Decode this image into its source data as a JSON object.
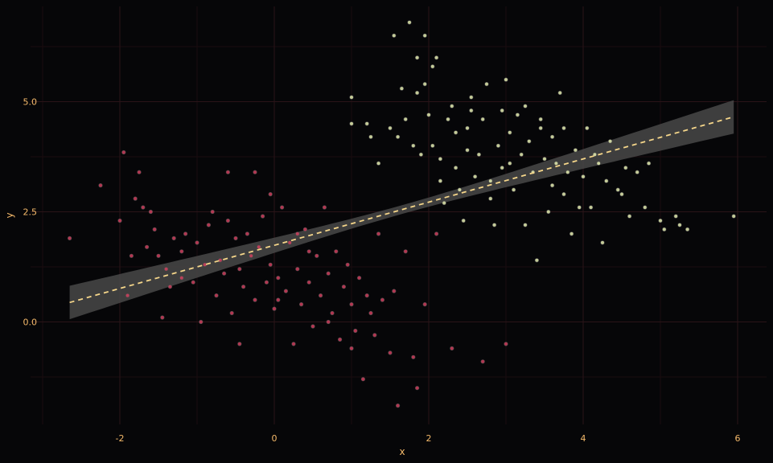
{
  "colors": {
    "background": "#060608",
    "grid_major": "#2a1418",
    "grid_minor": "#1a0c0f",
    "axis_text": "#f4b96a",
    "group_a": "#d2415f",
    "group_b": "#e6efb1",
    "point_outline": "#4a4a4a",
    "ribbon": "#4a4a4a",
    "fit_line": "#f5d68a"
  },
  "chart_data": {
    "type": "scatter",
    "xlabel": "x",
    "ylabel": "y",
    "xlim": [
      -3.0,
      6.2
    ],
    "ylim": [
      -2.3,
      7.0
    ],
    "x_ticks": [
      -2,
      0,
      2,
      4,
      6
    ],
    "x_tick_labels": [
      "-2",
      "0",
      "2",
      "4",
      "6"
    ],
    "y_ticks": [
      0.0,
      2.5,
      5.0
    ],
    "y_tick_labels": [
      "0.0",
      "2.5",
      "5.0"
    ],
    "grid": true,
    "legend": "none",
    "fit": {
      "type": "linear",
      "x_range": [
        -2.65,
        5.95
      ],
      "intercept": 1.74,
      "slope": 0.49,
      "band_halfwidth_min": 0.1,
      "band_halfwidth_at_ends": 0.38,
      "style": "dashed"
    },
    "series": [
      {
        "color_key": "group_a",
        "points": [
          [
            -2.65,
            1.9
          ],
          [
            -2.25,
            3.1
          ],
          [
            -2.0,
            2.3
          ],
          [
            -1.95,
            3.85
          ],
          [
            -1.9,
            0.6
          ],
          [
            -1.85,
            1.5
          ],
          [
            -1.8,
            2.8
          ],
          [
            -1.75,
            3.4
          ],
          [
            -1.7,
            2.6
          ],
          [
            -1.65,
            1.7
          ],
          [
            -1.6,
            2.5
          ],
          [
            -1.55,
            2.1
          ],
          [
            -1.5,
            1.5
          ],
          [
            -1.45,
            0.1
          ],
          [
            -1.4,
            1.2
          ],
          [
            -1.35,
            0.8
          ],
          [
            -1.3,
            1.9
          ],
          [
            -1.2,
            1.6
          ],
          [
            -1.15,
            2.0
          ],
          [
            -1.05,
            0.9
          ],
          [
            -1.0,
            1.8
          ],
          [
            -0.95,
            0.0
          ],
          [
            -0.9,
            1.3
          ],
          [
            -0.85,
            2.2
          ],
          [
            -0.8,
            2.5
          ],
          [
            -0.75,
            0.6
          ],
          [
            -0.7,
            1.4
          ],
          [
            -0.65,
            1.1
          ],
          [
            -0.6,
            2.3
          ],
          [
            -0.55,
            0.2
          ],
          [
            -0.5,
            1.9
          ],
          [
            -0.45,
            1.2
          ],
          [
            -0.4,
            0.8
          ],
          [
            -0.35,
            2.0
          ],
          [
            -0.3,
            1.5
          ],
          [
            -0.25,
            0.5
          ],
          [
            -0.2,
            1.7
          ],
          [
            -0.15,
            2.4
          ],
          [
            -0.1,
            0.9
          ],
          [
            -0.05,
            1.3
          ],
          [
            0.0,
            0.3
          ],
          [
            0.05,
            1.0
          ],
          [
            0.1,
            2.6
          ],
          [
            0.15,
            0.7
          ],
          [
            0.2,
            1.8
          ],
          [
            0.25,
            -0.5
          ],
          [
            0.3,
            1.2
          ],
          [
            0.35,
            0.4
          ],
          [
            0.4,
            2.1
          ],
          [
            0.45,
            0.9
          ],
          [
            0.5,
            -0.1
          ],
          [
            0.55,
            1.5
          ],
          [
            0.6,
            0.6
          ],
          [
            0.65,
            2.6
          ],
          [
            0.7,
            1.1
          ],
          [
            0.75,
            0.2
          ],
          [
            0.8,
            1.6
          ],
          [
            0.85,
            -0.4
          ],
          [
            0.9,
            0.8
          ],
          [
            0.95,
            1.3
          ],
          [
            1.0,
            0.4
          ],
          [
            1.05,
            -0.2
          ],
          [
            1.1,
            1.0
          ],
          [
            1.15,
            -1.3
          ],
          [
            1.2,
            0.6
          ],
          [
            1.3,
            -0.3
          ],
          [
            1.35,
            2.0
          ],
          [
            1.4,
            0.5
          ],
          [
            1.5,
            -0.7
          ],
          [
            1.55,
            0.7
          ],
          [
            1.6,
            -1.9
          ],
          [
            1.7,
            1.6
          ],
          [
            1.8,
            -0.8
          ],
          [
            1.85,
            -1.5
          ],
          [
            1.95,
            0.4
          ],
          [
            2.1,
            2.0
          ],
          [
            2.3,
            -0.6
          ],
          [
            2.7,
            -0.9
          ],
          [
            3.0,
            -0.5
          ],
          [
            -0.6,
            3.4
          ],
          [
            -0.25,
            3.4
          ],
          [
            -1.2,
            1.0
          ],
          [
            0.3,
            2.0
          ],
          [
            0.7,
            0.0
          ],
          [
            1.0,
            -0.6
          ],
          [
            -0.45,
            -0.5
          ],
          [
            0.05,
            0.5
          ],
          [
            0.45,
            1.6
          ],
          [
            1.25,
            0.2
          ],
          [
            -0.05,
            2.9
          ]
        ]
      },
      {
        "color_key": "group_b",
        "points": [
          [
            1.0,
            5.1
          ],
          [
            1.0,
            4.5
          ],
          [
            1.2,
            4.5
          ],
          [
            1.25,
            4.2
          ],
          [
            1.35,
            3.6
          ],
          [
            1.5,
            4.4
          ],
          [
            1.55,
            6.5
          ],
          [
            1.6,
            4.2
          ],
          [
            1.65,
            5.3
          ],
          [
            1.7,
            4.6
          ],
          [
            1.75,
            6.8
          ],
          [
            1.8,
            4.0
          ],
          [
            1.85,
            6.0
          ],
          [
            1.9,
            3.8
          ],
          [
            1.95,
            5.4
          ],
          [
            2.0,
            4.7
          ],
          [
            2.05,
            4.0
          ],
          [
            2.1,
            6.0
          ],
          [
            2.15,
            3.2
          ],
          [
            2.2,
            2.7
          ],
          [
            2.25,
            4.6
          ],
          [
            2.3,
            4.9
          ],
          [
            2.35,
            3.5
          ],
          [
            2.4,
            3.0
          ],
          [
            2.45,
            2.3
          ],
          [
            2.5,
            4.4
          ],
          [
            2.55,
            5.1
          ],
          [
            2.6,
            3.3
          ],
          [
            2.65,
            3.8
          ],
          [
            2.7,
            4.6
          ],
          [
            2.75,
            5.4
          ],
          [
            2.8,
            3.2
          ],
          [
            2.85,
            2.2
          ],
          [
            2.9,
            4.0
          ],
          [
            2.95,
            3.5
          ],
          [
            3.0,
            5.5
          ],
          [
            3.05,
            4.3
          ],
          [
            3.1,
            3.0
          ],
          [
            3.15,
            4.7
          ],
          [
            3.2,
            3.8
          ],
          [
            3.25,
            2.2
          ],
          [
            3.3,
            4.1
          ],
          [
            3.35,
            3.4
          ],
          [
            3.4,
            1.4
          ],
          [
            3.45,
            4.4
          ],
          [
            3.5,
            3.7
          ],
          [
            3.55,
            2.5
          ],
          [
            3.6,
            4.2
          ],
          [
            3.65,
            3.6
          ],
          [
            3.7,
            5.2
          ],
          [
            3.75,
            2.9
          ],
          [
            3.8,
            3.4
          ],
          [
            3.85,
            2.0
          ],
          [
            3.9,
            3.9
          ],
          [
            3.95,
            2.6
          ],
          [
            4.0,
            3.3
          ],
          [
            4.05,
            4.4
          ],
          [
            4.1,
            2.6
          ],
          [
            4.2,
            3.6
          ],
          [
            4.25,
            1.8
          ],
          [
            4.3,
            3.2
          ],
          [
            4.35,
            4.1
          ],
          [
            4.45,
            3.0
          ],
          [
            4.55,
            3.5
          ],
          [
            4.6,
            2.4
          ],
          [
            4.7,
            3.4
          ],
          [
            4.8,
            2.6
          ],
          [
            4.85,
            3.6
          ],
          [
            5.0,
            2.3
          ],
          [
            5.05,
            2.1
          ],
          [
            5.2,
            2.4
          ],
          [
            5.25,
            2.2
          ],
          [
            5.35,
            2.1
          ],
          [
            5.95,
            2.4
          ],
          [
            1.85,
            5.2
          ],
          [
            2.05,
            5.8
          ],
          [
            2.5,
            3.9
          ],
          [
            2.95,
            4.8
          ],
          [
            3.25,
            4.9
          ],
          [
            3.6,
            3.1
          ],
          [
            1.95,
            6.5
          ],
          [
            2.55,
            4.8
          ],
          [
            3.05,
            3.6
          ],
          [
            3.45,
            4.6
          ],
          [
            4.15,
            3.8
          ],
          [
            2.35,
            4.3
          ],
          [
            2.8,
            2.8
          ],
          [
            3.75,
            4.4
          ],
          [
            4.5,
            2.9
          ],
          [
            2.15,
            3.7
          ]
        ]
      }
    ]
  }
}
